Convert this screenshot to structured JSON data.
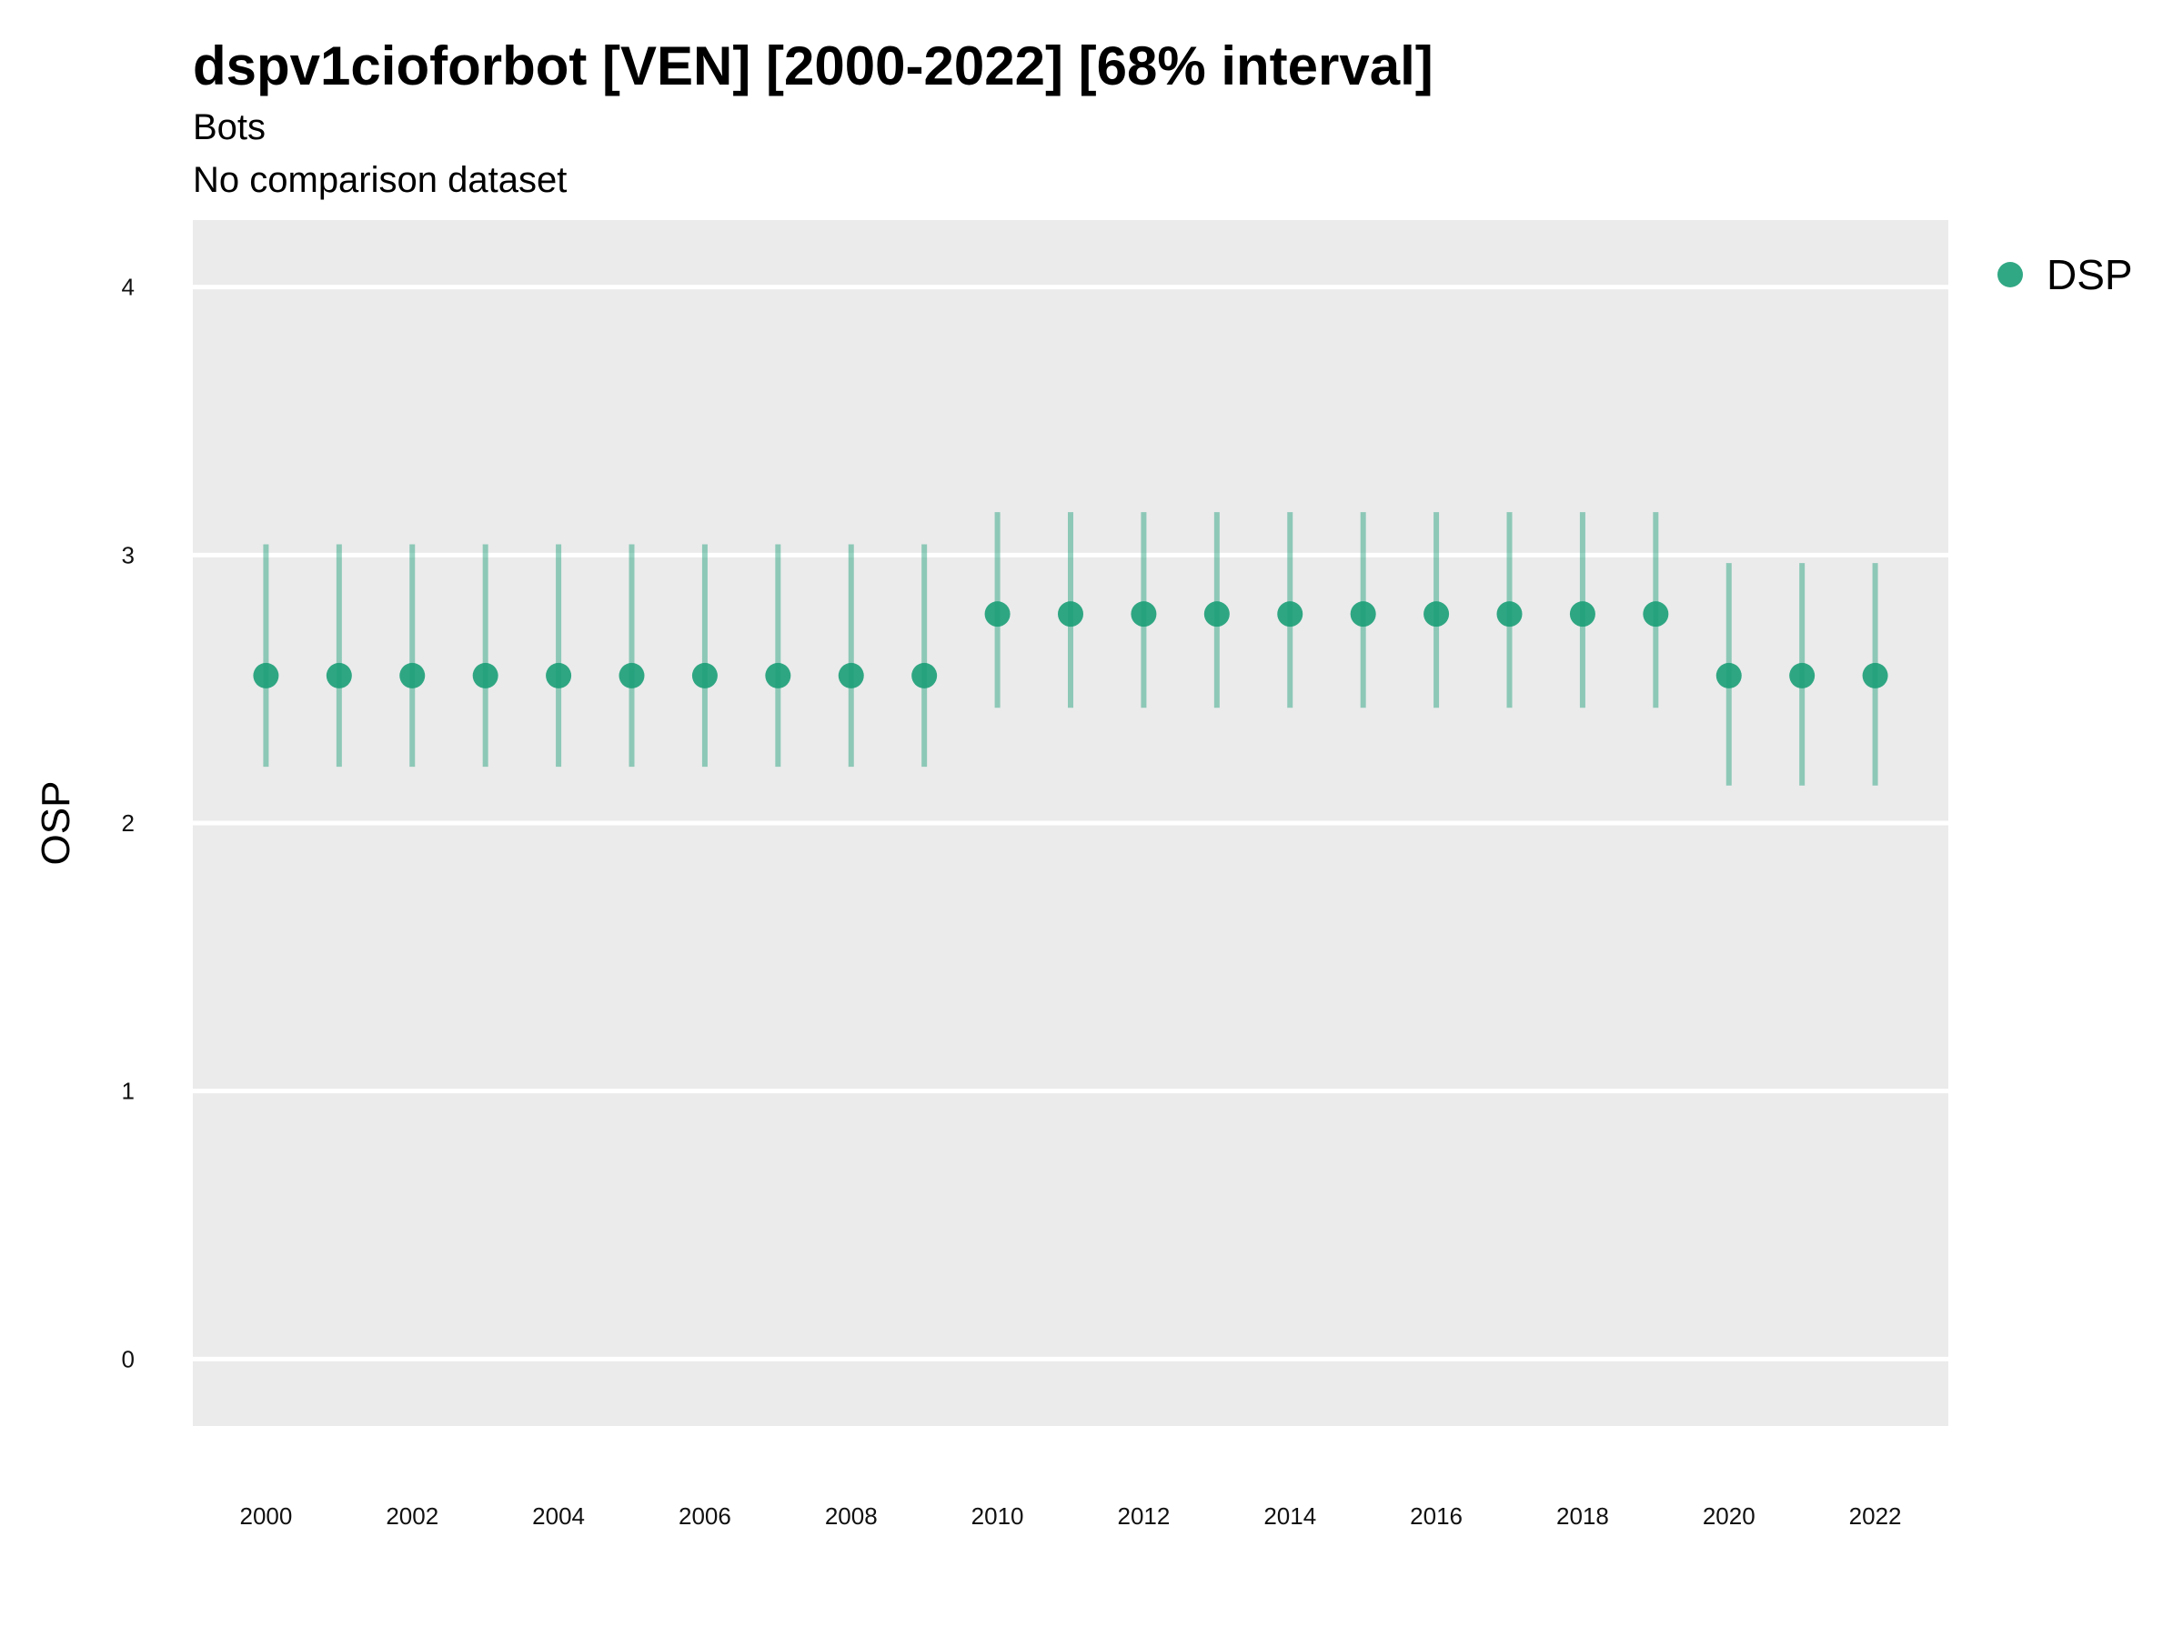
{
  "title": "dspv1cioforbot [VEN] [2000-2022] [68% interval]",
  "subtitle_1": "Bots",
  "subtitle_2": "No comparison dataset",
  "colors": {
    "point": "#1b9e77",
    "panel": "#ebebeb",
    "grid": "#ffffff"
  },
  "chart_data": {
    "type": "scatter",
    "ylabel": "OSP",
    "xlabel": "",
    "ylim": [
      -0.25,
      4.25
    ],
    "xlim": [
      1999,
      2023
    ],
    "y_ticks": [
      0,
      1,
      2,
      3,
      4
    ],
    "x_ticks": [
      2000,
      2002,
      2004,
      2006,
      2008,
      2010,
      2012,
      2014,
      2016,
      2018,
      2020,
      2022
    ],
    "legend_position": "right",
    "series": [
      {
        "name": "DSP",
        "x": [
          2000,
          2001,
          2002,
          2003,
          2004,
          2005,
          2006,
          2007,
          2008,
          2009,
          2010,
          2011,
          2012,
          2013,
          2014,
          2015,
          2016,
          2017,
          2018,
          2019,
          2020,
          2021,
          2022
        ],
        "y": [
          2.55,
          2.55,
          2.55,
          2.55,
          2.55,
          2.55,
          2.55,
          2.55,
          2.55,
          2.55,
          2.78,
          2.78,
          2.78,
          2.78,
          2.78,
          2.78,
          2.78,
          2.78,
          2.78,
          2.78,
          2.55,
          2.55,
          2.55
        ],
        "lower": [
          2.21,
          2.21,
          2.21,
          2.21,
          2.21,
          2.21,
          2.21,
          2.21,
          2.21,
          2.21,
          2.43,
          2.43,
          2.43,
          2.43,
          2.43,
          2.43,
          2.43,
          2.43,
          2.43,
          2.43,
          2.14,
          2.14,
          2.14
        ],
        "upper": [
          3.04,
          3.04,
          3.04,
          3.04,
          3.04,
          3.04,
          3.04,
          3.04,
          3.04,
          3.04,
          3.16,
          3.16,
          3.16,
          3.16,
          3.16,
          3.16,
          3.16,
          3.16,
          3.16,
          3.16,
          2.97,
          2.97,
          2.97
        ]
      }
    ]
  }
}
